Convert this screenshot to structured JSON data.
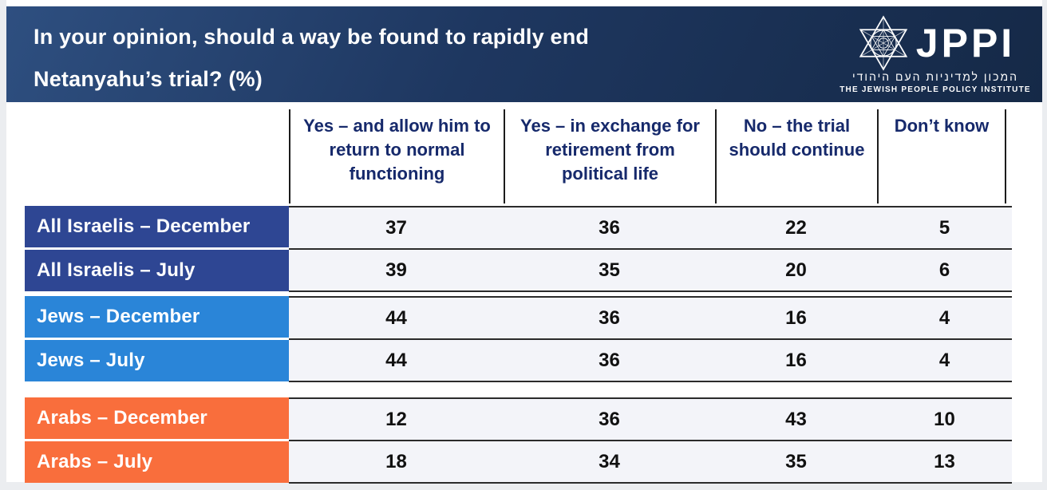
{
  "header": {
    "title_line1": "In your opinion, should a way be found to rapidly end",
    "title_line2": "Netanyahu’s trial? (%)",
    "logo": {
      "wordmark": "JPPI",
      "hebrew_tagline": "המכון למדיניות העם היהודי",
      "english_tagline": "THE JEWISH PEOPLE POLICY INSTITUTE"
    }
  },
  "colors": {
    "titlebar_navy": "#1e3760",
    "header_text_navy": "#16296b",
    "row_navy": "#2e4693",
    "row_blue": "#2a85d8",
    "row_orange": "#f96e3c",
    "data_row_bg": "#f3f4f9",
    "grid_line": "#2b2b2b"
  },
  "chart_data": {
    "type": "table",
    "title": "In your opinion, should a way be found to rapidly end Netanyahu’s trial? (%)",
    "columns": [
      "Yes – and allow him to return to normal functioning",
      "Yes – in exchange for retirement from political life",
      "No – the trial should continue",
      "Don’t know"
    ],
    "groups": [
      {
        "name": "All Israelis",
        "color": "#2e4693",
        "rows": [
          {
            "label": "All Israelis – December",
            "values": [
              37,
              36,
              22,
              5
            ]
          },
          {
            "label": "All Israelis – July",
            "values": [
              39,
              35,
              20,
              6
            ]
          }
        ]
      },
      {
        "name": "Jews",
        "color": "#2a85d8",
        "rows": [
          {
            "label": "Jews – December",
            "values": [
              44,
              36,
              16,
              4
            ]
          },
          {
            "label": "Jews – July",
            "values": [
              44,
              36,
              16,
              4
            ]
          }
        ]
      },
      {
        "name": "Arabs",
        "color": "#f96e3c",
        "rows": [
          {
            "label": "Arabs – December",
            "values": [
              12,
              36,
              43,
              10
            ]
          },
          {
            "label": "Arabs – July",
            "values": [
              18,
              34,
              35,
              13
            ]
          }
        ]
      }
    ]
  }
}
